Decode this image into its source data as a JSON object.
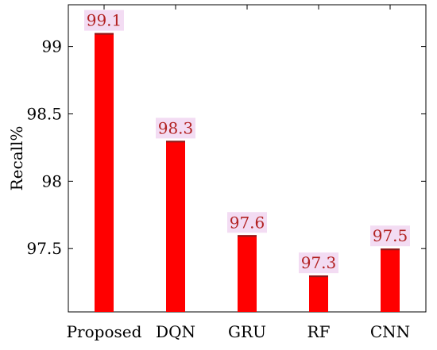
{
  "chart_data": {
    "type": "bar",
    "title": "",
    "xlabel": "",
    "ylabel": "Recall%",
    "categories": [
      "Proposed",
      "DQN",
      "GRU",
      "RF",
      "CNN"
    ],
    "values": [
      99.1,
      98.3,
      97.6,
      97.3,
      97.5
    ],
    "value_labels": [
      "99.1",
      "98.3",
      "97.6",
      "97.3",
      "97.5"
    ],
    "ylim": [
      97.03,
      99.31
    ],
    "yticks": [
      97.5,
      98,
      98.5,
      99
    ],
    "ytick_labels": [
      "97.5",
      "98",
      "98.5",
      "99"
    ],
    "grid": false,
    "legend": "none",
    "colors": {
      "bar_fill": "#ff0000",
      "bar_top": "#8b1a1a",
      "label_text": "#b22222",
      "label_halo": "#f3dcf3",
      "axis": "#000000"
    }
  }
}
